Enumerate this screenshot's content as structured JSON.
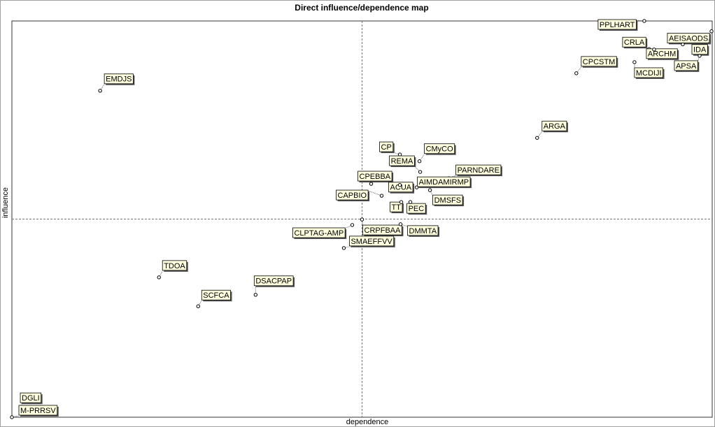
{
  "chart_data": {
    "type": "scatter",
    "title": "Direct influence/dependence map",
    "x_label": "dependence",
    "y_label": "influence",
    "xlim": [
      0,
      100
    ],
    "ylim": [
      0,
      100
    ],
    "labels": [
      "PPLHART",
      "AEISAODS",
      "IDA",
      "CRLA",
      "ARCHM",
      "APSA",
      "MCDIJI",
      "CPCSTM",
      "EMDJS",
      "ARGA",
      "CP",
      "CMyCO",
      "REMA",
      "PARNDARE",
      "AIMDAMIRMP",
      "CPEBBA",
      "ACUA",
      "CAPBIO",
      "DMSFS",
      "TT",
      "PEC",
      "CRPFBAA",
      "DMMTA",
      "CLPTAG-AMP",
      "SMAEFFVV",
      "TDOA",
      "DSACPAP",
      "SCFCA",
      "DGLI",
      "M-PRRSV"
    ],
    "x": [
      90.3,
      95.8,
      99.9,
      91.0,
      91.7,
      98.2,
      88.9,
      80.6,
      12.6,
      75.0,
      55.4,
      58.2,
      58.3,
      62.4,
      57.8,
      51.3,
      55.4,
      52.8,
      59.7,
      55.6,
      56.9,
      50.0,
      55.5,
      48.6,
      47.4,
      21.0,
      34.8,
      26.6,
      1.4,
      0
    ],
    "values": [
      100,
      94.1,
      97.4,
      92.9,
      92.8,
      91.2,
      89.6,
      86.8,
      82.4,
      70.5,
      66.3,
      64.6,
      61.9,
      60.3,
      58.0,
      58.9,
      58.6,
      55.9,
      57.3,
      54.3,
      54.3,
      49.9,
      48.7,
      48.5,
      42.7,
      35.3,
      30.9,
      28.0,
      1.9,
      0
    ]
  }
}
